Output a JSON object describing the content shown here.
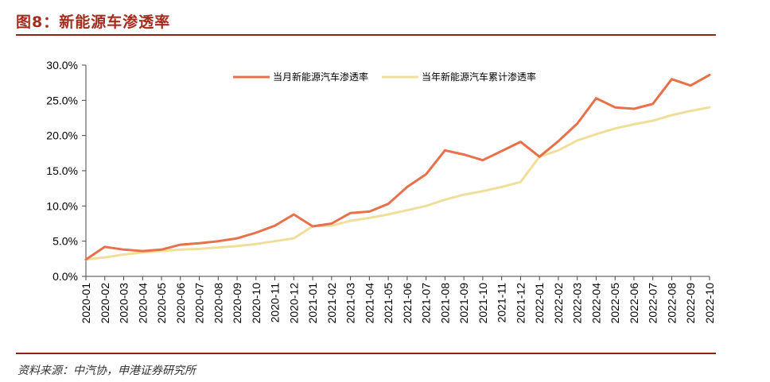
{
  "figure": {
    "title": "图8：新能源车渗透率",
    "source": "资料来源：中汽协，申港证券研究所"
  },
  "chart_data": {
    "type": "line",
    "title": "",
    "xlabel": "",
    "ylabel": "",
    "ylim": [
      0,
      30
    ],
    "yticks": [
      "0.0%",
      "5.0%",
      "10.0%",
      "15.0%",
      "20.0%",
      "25.0%",
      "30.0%"
    ],
    "y_unit": "%",
    "grid": false,
    "legend_position": "top-right",
    "categories": [
      "2020-01",
      "2020-02",
      "2020-03",
      "2020-04",
      "2020-05",
      "2020-06",
      "2020-07",
      "2020-08",
      "2020-09",
      "2020-10",
      "2020-11",
      "2020-12",
      "2021-01",
      "2021-02",
      "2021-03",
      "2021-04",
      "2021-05",
      "2021-06",
      "2021-07",
      "2021-08",
      "2021-09",
      "2021-10",
      "2021-11",
      "2021-12",
      "2022-01",
      "2022-02",
      "2022-03",
      "2022-04",
      "2022-05",
      "2022-06",
      "2022-07",
      "2022-08",
      "2022-09",
      "2022-10"
    ],
    "series": [
      {
        "name": "当月新能源汽车渗透率",
        "color": "#e8704a",
        "values": [
          2.4,
          4.2,
          3.8,
          3.6,
          3.8,
          4.5,
          4.7,
          5.0,
          5.4,
          6.2,
          7.2,
          8.8,
          7.1,
          7.5,
          9.0,
          9.2,
          10.3,
          12.7,
          14.5,
          17.9,
          17.3,
          16.5,
          17.8,
          19.1,
          17.0,
          19.2,
          21.7,
          25.3,
          24.0,
          23.8,
          24.5,
          28.0,
          27.1,
          28.6
        ]
      },
      {
        "name": "当年新能源汽车累计渗透率",
        "color": "#f0df9c",
        "values": [
          2.4,
          2.7,
          3.1,
          3.4,
          3.6,
          3.8,
          3.9,
          4.1,
          4.3,
          4.6,
          5.0,
          5.4,
          7.1,
          7.2,
          7.9,
          8.3,
          8.8,
          9.4,
          10.0,
          10.9,
          11.6,
          12.1,
          12.7,
          13.4,
          17.0,
          17.9,
          19.3,
          20.2,
          21.0,
          21.6,
          22.1,
          22.9,
          23.5,
          24.0
        ]
      }
    ]
  }
}
